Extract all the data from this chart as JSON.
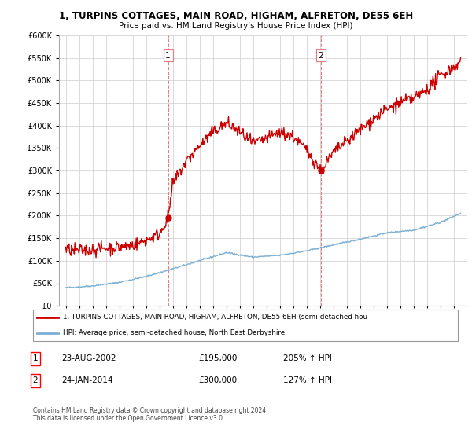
{
  "title": "1, TURPINS COTTAGES, MAIN ROAD, HIGHAM, ALFRETON, DE55 6EH",
  "subtitle": "Price paid vs. HM Land Registry's House Price Index (HPI)",
  "legend_line1": "1, TURPINS COTTAGES, MAIN ROAD, HIGHAM, ALFRETON, DE55 6EH (semi-detached hou",
  "legend_line2": "HPI: Average price, semi-detached house, North East Derbyshire",
  "footer": "Contains HM Land Registry data © Crown copyright and database right 2024.\nThis data is licensed under the Open Government Licence v3.0.",
  "sale1_label": "1",
  "sale1_date": "23-AUG-2002",
  "sale1_price": "£195,000",
  "sale1_hpi": "205% ↑ HPI",
  "sale2_label": "2",
  "sale2_date": "24-JAN-2014",
  "sale2_price": "£300,000",
  "sale2_hpi": "127% ↑ HPI",
  "red_color": "#cc0000",
  "blue_color": "#7bafd4",
  "vline_color": "#e08080",
  "ylim": [
    0,
    600000
  ],
  "yticks": [
    0,
    50000,
    100000,
    150000,
    200000,
    250000,
    300000,
    350000,
    400000,
    450000,
    500000,
    550000,
    600000
  ],
  "sale1_x": 2002.646,
  "sale2_x": 2014.07,
  "sale1_y": 195000,
  "sale2_y": 300000,
  "background_color": "#ffffff",
  "grid_color": "#cccccc",
  "xlim_left": 1994.5,
  "xlim_right": 2025.0
}
